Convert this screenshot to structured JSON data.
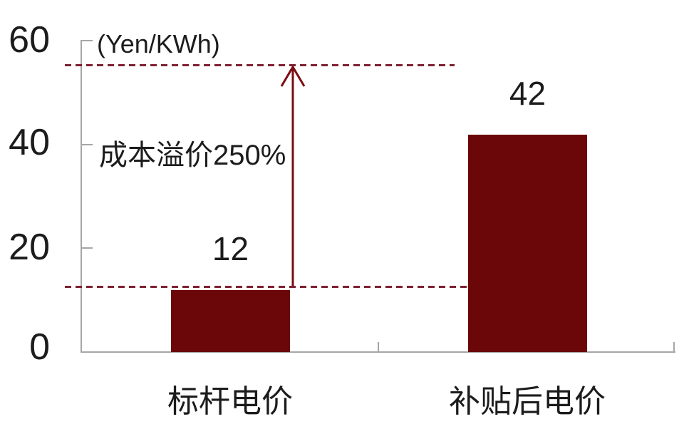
{
  "chart_data": {
    "type": "bar",
    "title": "",
    "unit_label": "(Yen/KWh)",
    "categories": [
      "标杆电价",
      "补贴后电价"
    ],
    "values": [
      12,
      42
    ],
    "data_labels": [
      "12",
      "42"
    ],
    "annotation": "成本溢价250%",
    "ytick_labels": [
      "60",
      "40",
      "20",
      "0"
    ],
    "yticks": [
      60,
      40,
      20,
      0
    ],
    "ylim": [
      0,
      60
    ],
    "grid": false,
    "legend_position": "none",
    "dashed_guide_levels": [
      12,
      55
    ],
    "annotation_arrow": {
      "from_level": 12,
      "to_level": 55,
      "direction": "up"
    },
    "colors": {
      "bar": "#6b0708",
      "dashed_guide": "#7d2130",
      "arrow": "#7a0d12",
      "axis": "#a6a6a6",
      "text": "#1c1c1c",
      "background": "#ffffff"
    }
  }
}
